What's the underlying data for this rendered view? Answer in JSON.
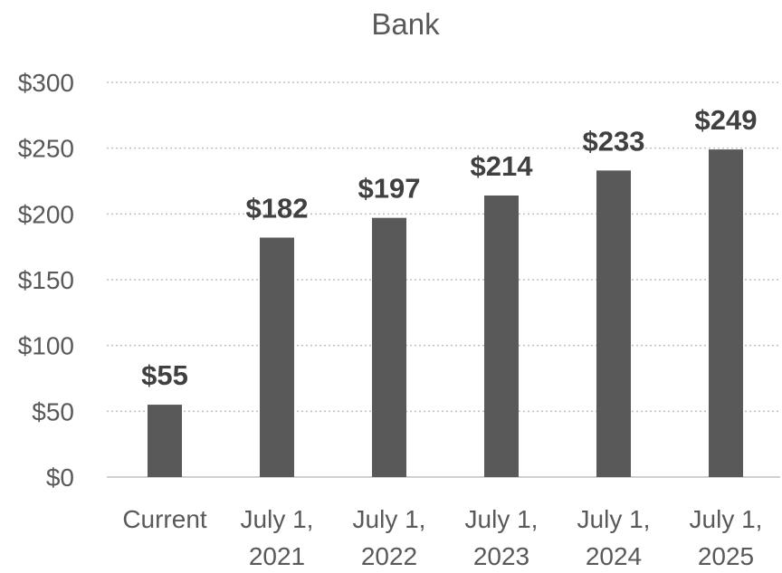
{
  "chart_data": {
    "type": "bar",
    "title": "Bank",
    "categories": [
      [
        "Current"
      ],
      [
        "July 1,",
        "2021"
      ],
      [
        "July 1,",
        "2022"
      ],
      [
        "July 1,",
        "2023"
      ],
      [
        "July 1,",
        "2024"
      ],
      [
        "July 1,",
        "2025"
      ]
    ],
    "values": [
      55,
      182,
      197,
      214,
      233,
      249
    ],
    "data_labels": [
      "$55",
      "$182",
      "$197",
      "$214",
      "$233",
      "$249"
    ],
    "yticks": [
      0,
      50,
      100,
      150,
      200,
      250,
      300
    ],
    "ytick_labels": [
      "$0",
      "$50",
      "$100",
      "$150",
      "$200",
      "$250",
      "$300"
    ],
    "ylim": [
      0,
      300
    ],
    "grid": true,
    "legend": "none",
    "bar_color": "#595959"
  }
}
